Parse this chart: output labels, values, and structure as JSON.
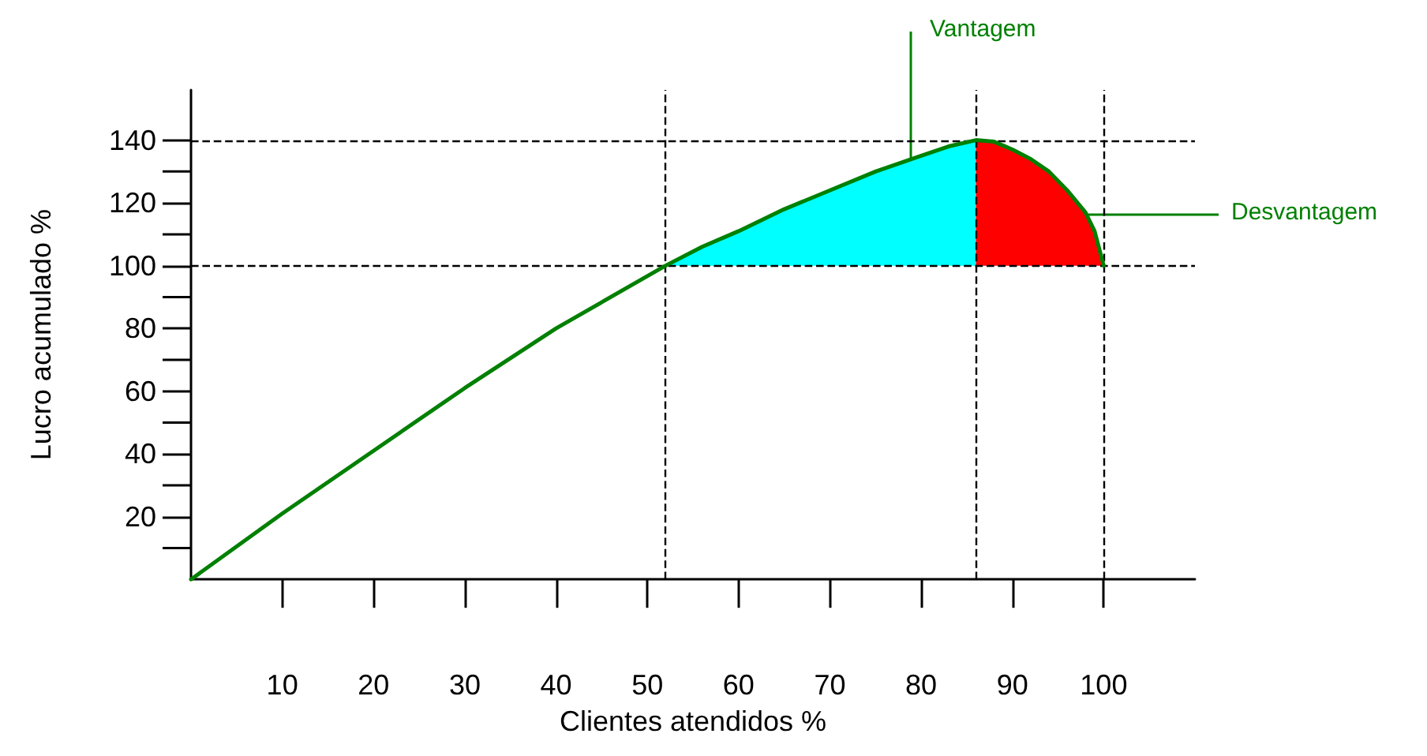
{
  "chart_data": {
    "type": "line",
    "xlabel": "Clientes atendidos %",
    "ylabel": "Lucro acumulado %",
    "xlim": [
      0,
      110
    ],
    "ylim": [
      0,
      156
    ],
    "xticks": [
      10,
      20,
      30,
      40,
      50,
      60,
      70,
      80,
      90,
      100
    ],
    "yticks": [
      20,
      40,
      60,
      80,
      100,
      120,
      140
    ],
    "grid": false,
    "marker": "none",
    "line_style": "solid",
    "series": [
      {
        "type": "area",
        "color": "#00ffff",
        "x": [
          52,
          56,
          60,
          65,
          70,
          75,
          80,
          83,
          86
        ],
        "values": [
          100,
          106,
          111,
          118,
          124,
          130,
          135,
          138,
          140
        ]
      },
      {
        "type": "area",
        "color": "#ff0000",
        "x": [
          86,
          88,
          90,
          92,
          94,
          96,
          98,
          99,
          100
        ],
        "values": [
          140,
          139.5,
          137,
          134,
          130,
          124,
          117,
          111,
          100
        ]
      },
      {
        "color": "#008000",
        "x": [
          0,
          10,
          20,
          30,
          40,
          52,
          56,
          60,
          65,
          70,
          75,
          80,
          83,
          86,
          88,
          90,
          92,
          94,
          96,
          98,
          99,
          100
        ],
        "values": [
          0,
          21,
          41,
          61,
          80,
          100,
          106,
          111,
          118,
          124,
          130,
          135,
          138,
          140,
          139.5,
          137,
          134,
          130,
          124,
          117,
          111,
          100
        ]
      }
    ],
    "ref_lines": [
      {
        "axis": "x",
        "value": 52,
        "color": "#000000",
        "line_style": "dashed"
      },
      {
        "axis": "x",
        "value": 86,
        "color": "#000000",
        "line_style": "dashed"
      },
      {
        "axis": "x",
        "value": 100,
        "color": "#000000",
        "line_style": "dashed"
      },
      {
        "axis": "y",
        "value": 100,
        "color": "#000000",
        "line_style": "dashed"
      },
      {
        "axis": "y",
        "value": 140,
        "color": "#000000",
        "line_style": "dashed"
      }
    ],
    "annotations": [
      "Vantagem",
      "Desvantagem"
    ]
  }
}
